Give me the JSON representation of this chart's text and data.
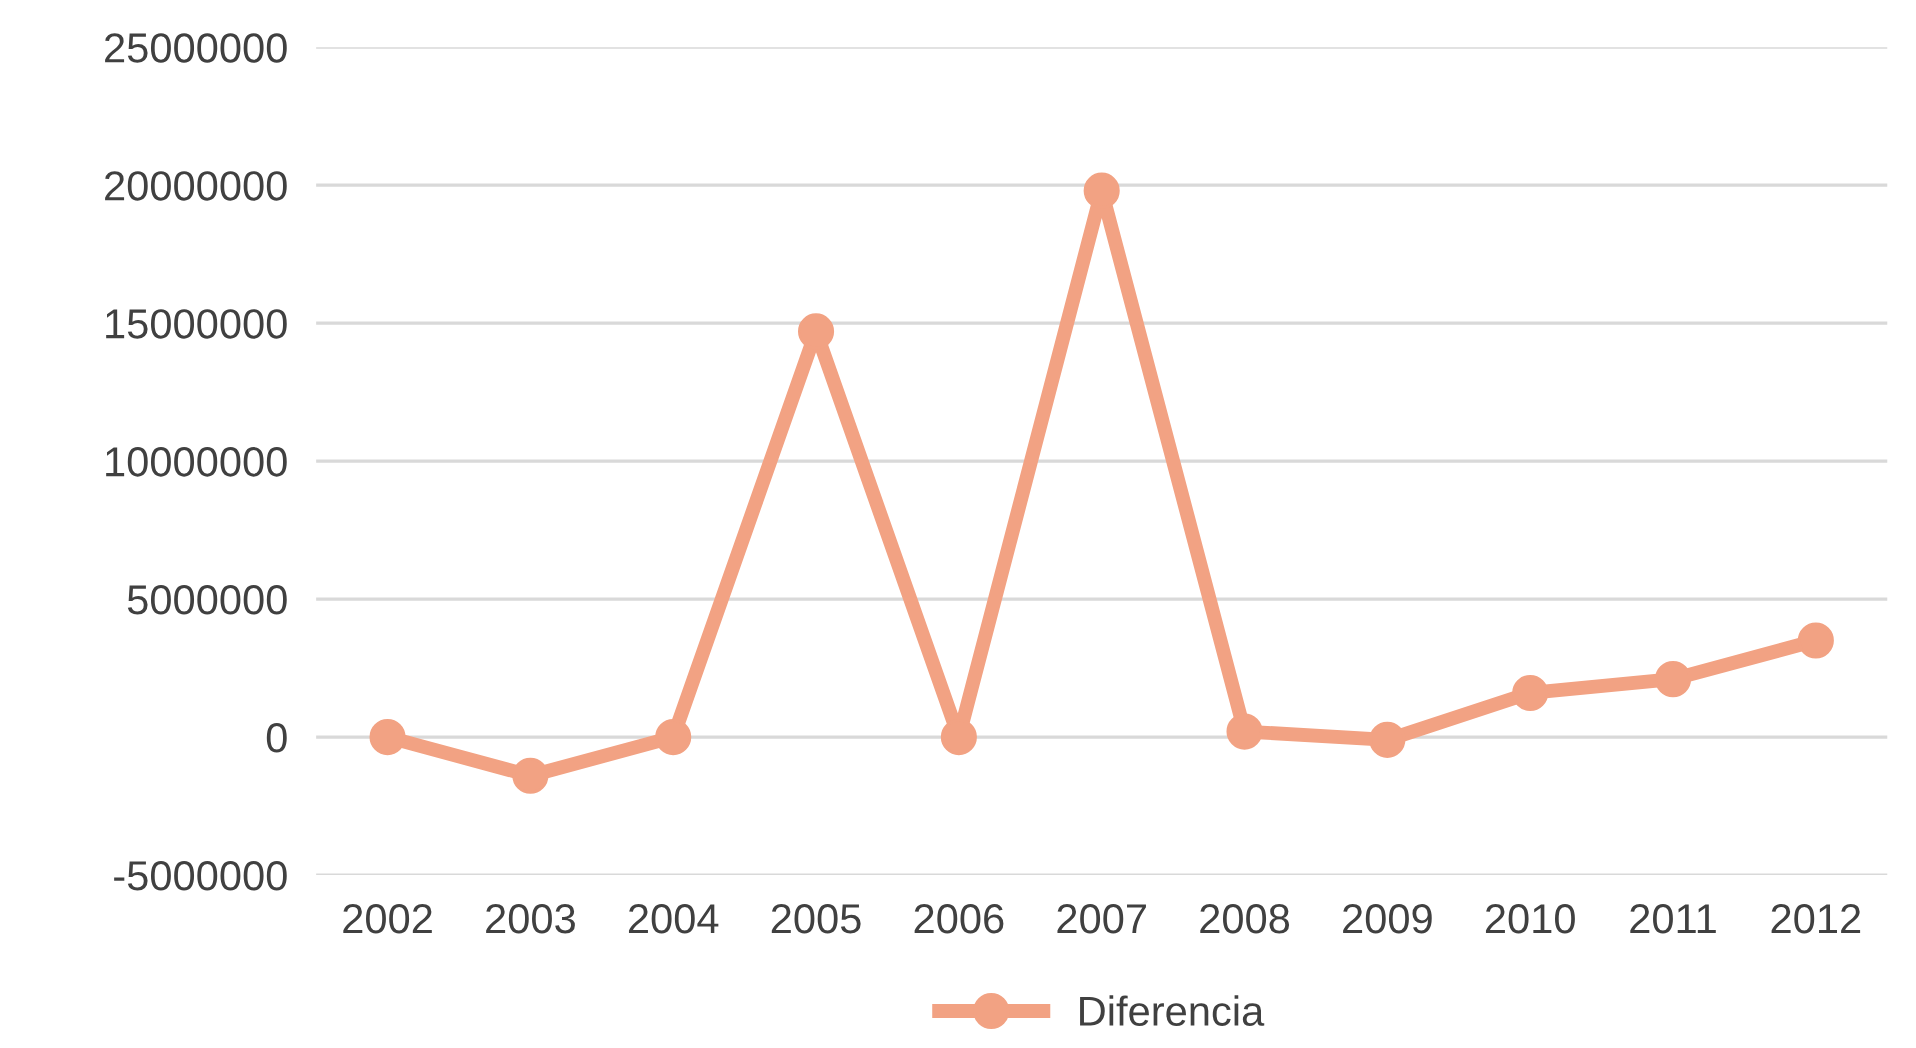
{
  "chart_data": {
    "type": "line",
    "categories": [
      "2002",
      "2003",
      "2004",
      "2005",
      "2006",
      "2007",
      "2008",
      "2009",
      "2010",
      "2011",
      "2012"
    ],
    "series": [
      {
        "name": "Diferencia",
        "color": "#f2a283",
        "values": [
          0,
          -1400000,
          0,
          14700000,
          0,
          19800000,
          200000,
          -100000,
          1600000,
          2100000,
          3500000
        ]
      }
    ],
    "ylim": [
      -5000000,
      25000000
    ],
    "yticks": [
      -5000000,
      0,
      5000000,
      10000000,
      15000000,
      20000000,
      25000000
    ],
    "grid": "y",
    "legend": "bottom",
    "marker": "circle",
    "line_style": "solid"
  }
}
